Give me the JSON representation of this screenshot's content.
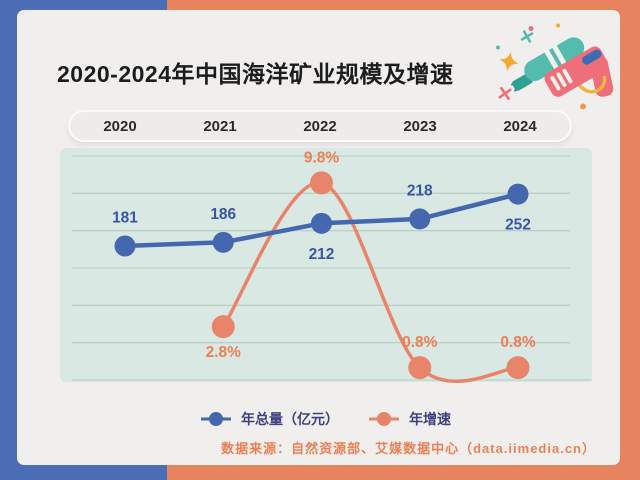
{
  "header": {
    "title": "2020-2024年中国海洋矿业规模及增速"
  },
  "chart_data": {
    "type": "line",
    "title": "2020-2024年中国海洋矿业规模及增速",
    "categories": [
      "2020",
      "2021",
      "2022",
      "2023",
      "2024"
    ],
    "series": [
      {
        "name": "年总量（亿元）",
        "values": [
          181,
          186,
          212,
          218,
          252
        ],
        "labels": [
          "181",
          "186",
          "212",
          "218",
          "252"
        ],
        "label_pos": [
          "above",
          "above",
          "below",
          "above",
          "below"
        ],
        "color": "#4467b0",
        "label_color": "#3a55a4",
        "ylim": [
          -5,
          315
        ],
        "smooth": false
      },
      {
        "name": "年增速",
        "values": [
          null,
          2.8,
          9.8,
          0.8,
          0.8
        ],
        "labels": [
          "",
          "2.8%",
          "9.8%",
          "0.8%",
          "0.8%"
        ],
        "label_pos": [
          "",
          "below",
          "above",
          "above",
          "above"
        ],
        "color": "#e8846a",
        "label_color": "#ee7f55",
        "ylim": [
          0.1,
          11.5
        ],
        "smooth": true
      }
    ],
    "grid": true,
    "grid_lines": 7,
    "legend_position": "bottom"
  },
  "source": {
    "text": "数据来源：自然资源部、艾媒数据中心（data.iimedia.cn）"
  },
  "colors": {
    "page_left": "#4b6db6",
    "page_right": "#e8835f",
    "card_bg": "#f0efed",
    "panel_bg": "#d9e8e2",
    "grid_line": "#b9cec8",
    "title_text": "#1d1d1d",
    "year_text": "#2b2b2b",
    "legend_text": "#3e4180",
    "source_text": "#ee7f55",
    "gun_pink": "#ee6f79",
    "gun_teal": "#54bcae",
    "gun_teal_dark": "#2fa094",
    "gun_yellow": "#f0b53e",
    "gun_blue": "#3c6cb4",
    "star_orange": "#f5a833"
  }
}
